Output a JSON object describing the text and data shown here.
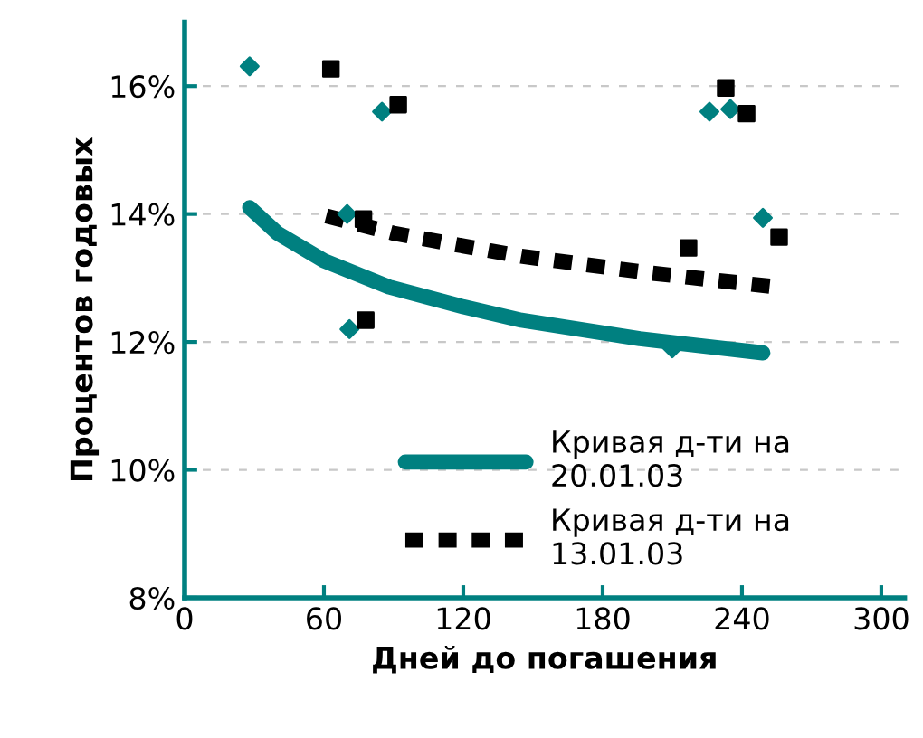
{
  "chart_data": {
    "type": "scatter",
    "xlabel": "Дней до погашения",
    "ylabel": "Процентов годовых",
    "xlim": [
      0,
      310
    ],
    "xticks": [
      0,
      60,
      120,
      180,
      240,
      300
    ],
    "ylim": [
      8,
      17
    ],
    "yticks": [
      {
        "value": 8,
        "label": "8%"
      },
      {
        "value": 10,
        "label": "10%"
      },
      {
        "value": 12,
        "label": "12%"
      },
      {
        "value": 14,
        "label": "14%"
      },
      {
        "value": 16,
        "label": "16%"
      }
    ],
    "grid": "y",
    "legend": "bottom right",
    "series": [
      {
        "marker": "diamond",
        "color": "#008080",
        "x": [
          28,
          85,
          71,
          70,
          210,
          226,
          235,
          249
        ],
        "values": [
          16.31,
          15.6,
          12.2,
          14.0,
          11.9,
          15.6,
          15.64,
          13.94
        ]
      },
      {
        "marker": "square",
        "color": "#000000",
        "x": [
          63,
          92,
          77,
          78,
          217,
          233,
          242,
          256
        ],
        "values": [
          16.27,
          15.71,
          13.92,
          12.34,
          13.47,
          15.97,
          15.57,
          13.64
        ]
      },
      {
        "type": "line",
        "name": "Кривая д-ти на 20.01.03",
        "color": "#008080",
        "line_style": "solid",
        "x": [
          28,
          40,
          60,
          88,
          120,
          145,
          196,
          249
        ],
        "values": [
          14.1,
          13.7,
          13.27,
          12.86,
          12.55,
          12.34,
          12.05,
          11.83
        ]
      },
      {
        "type": "line",
        "name": "Кривая д-ти на 13.01.03",
        "color": "#000000",
        "line_style": "dashed",
        "x": [
          61,
          90,
          120,
          145,
          200,
          255
        ],
        "values": [
          13.97,
          13.7,
          13.5,
          13.34,
          13.08,
          12.86
        ]
      }
    ]
  }
}
